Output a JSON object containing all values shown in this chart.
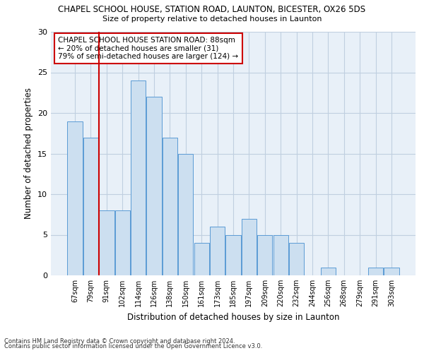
{
  "title1": "CHAPEL SCHOOL HOUSE, STATION ROAD, LAUNTON, BICESTER, OX26 5DS",
  "title2": "Size of property relative to detached houses in Launton",
  "xlabel": "Distribution of detached houses by size in Launton",
  "ylabel": "Number of detached properties",
  "categories": [
    "67sqm",
    "79sqm",
    "91sqm",
    "102sqm",
    "114sqm",
    "126sqm",
    "138sqm",
    "150sqm",
    "161sqm",
    "173sqm",
    "185sqm",
    "197sqm",
    "209sqm",
    "220sqm",
    "232sqm",
    "244sqm",
    "256sqm",
    "268sqm",
    "279sqm",
    "291sqm",
    "303sqm"
  ],
  "values": [
    19,
    17,
    8,
    8,
    24,
    22,
    17,
    15,
    4,
    6,
    5,
    7,
    5,
    5,
    4,
    0,
    1,
    0,
    0,
    1,
    1
  ],
  "bar_color": "#ccdff0",
  "bar_edge_color": "#5b9bd5",
  "vline_x": 1.5,
  "vline_color": "#cc0000",
  "annotation_text": "CHAPEL SCHOOL HOUSE STATION ROAD: 88sqm\n← 20% of detached houses are smaller (31)\n79% of semi-detached houses are larger (124) →",
  "annotation_box_color": "#ffffff",
  "annotation_border_color": "#cc0000",
  "ylim": [
    0,
    30
  ],
  "yticks": [
    0,
    5,
    10,
    15,
    20,
    25,
    30
  ],
  "footer1": "Contains HM Land Registry data © Crown copyright and database right 2024.",
  "footer2": "Contains public sector information licensed under the Open Government Licence v3.0.",
  "bg_color": "#e8f0f8",
  "fig_bg_color": "#ffffff",
  "grid_color": "#c0cfe0"
}
